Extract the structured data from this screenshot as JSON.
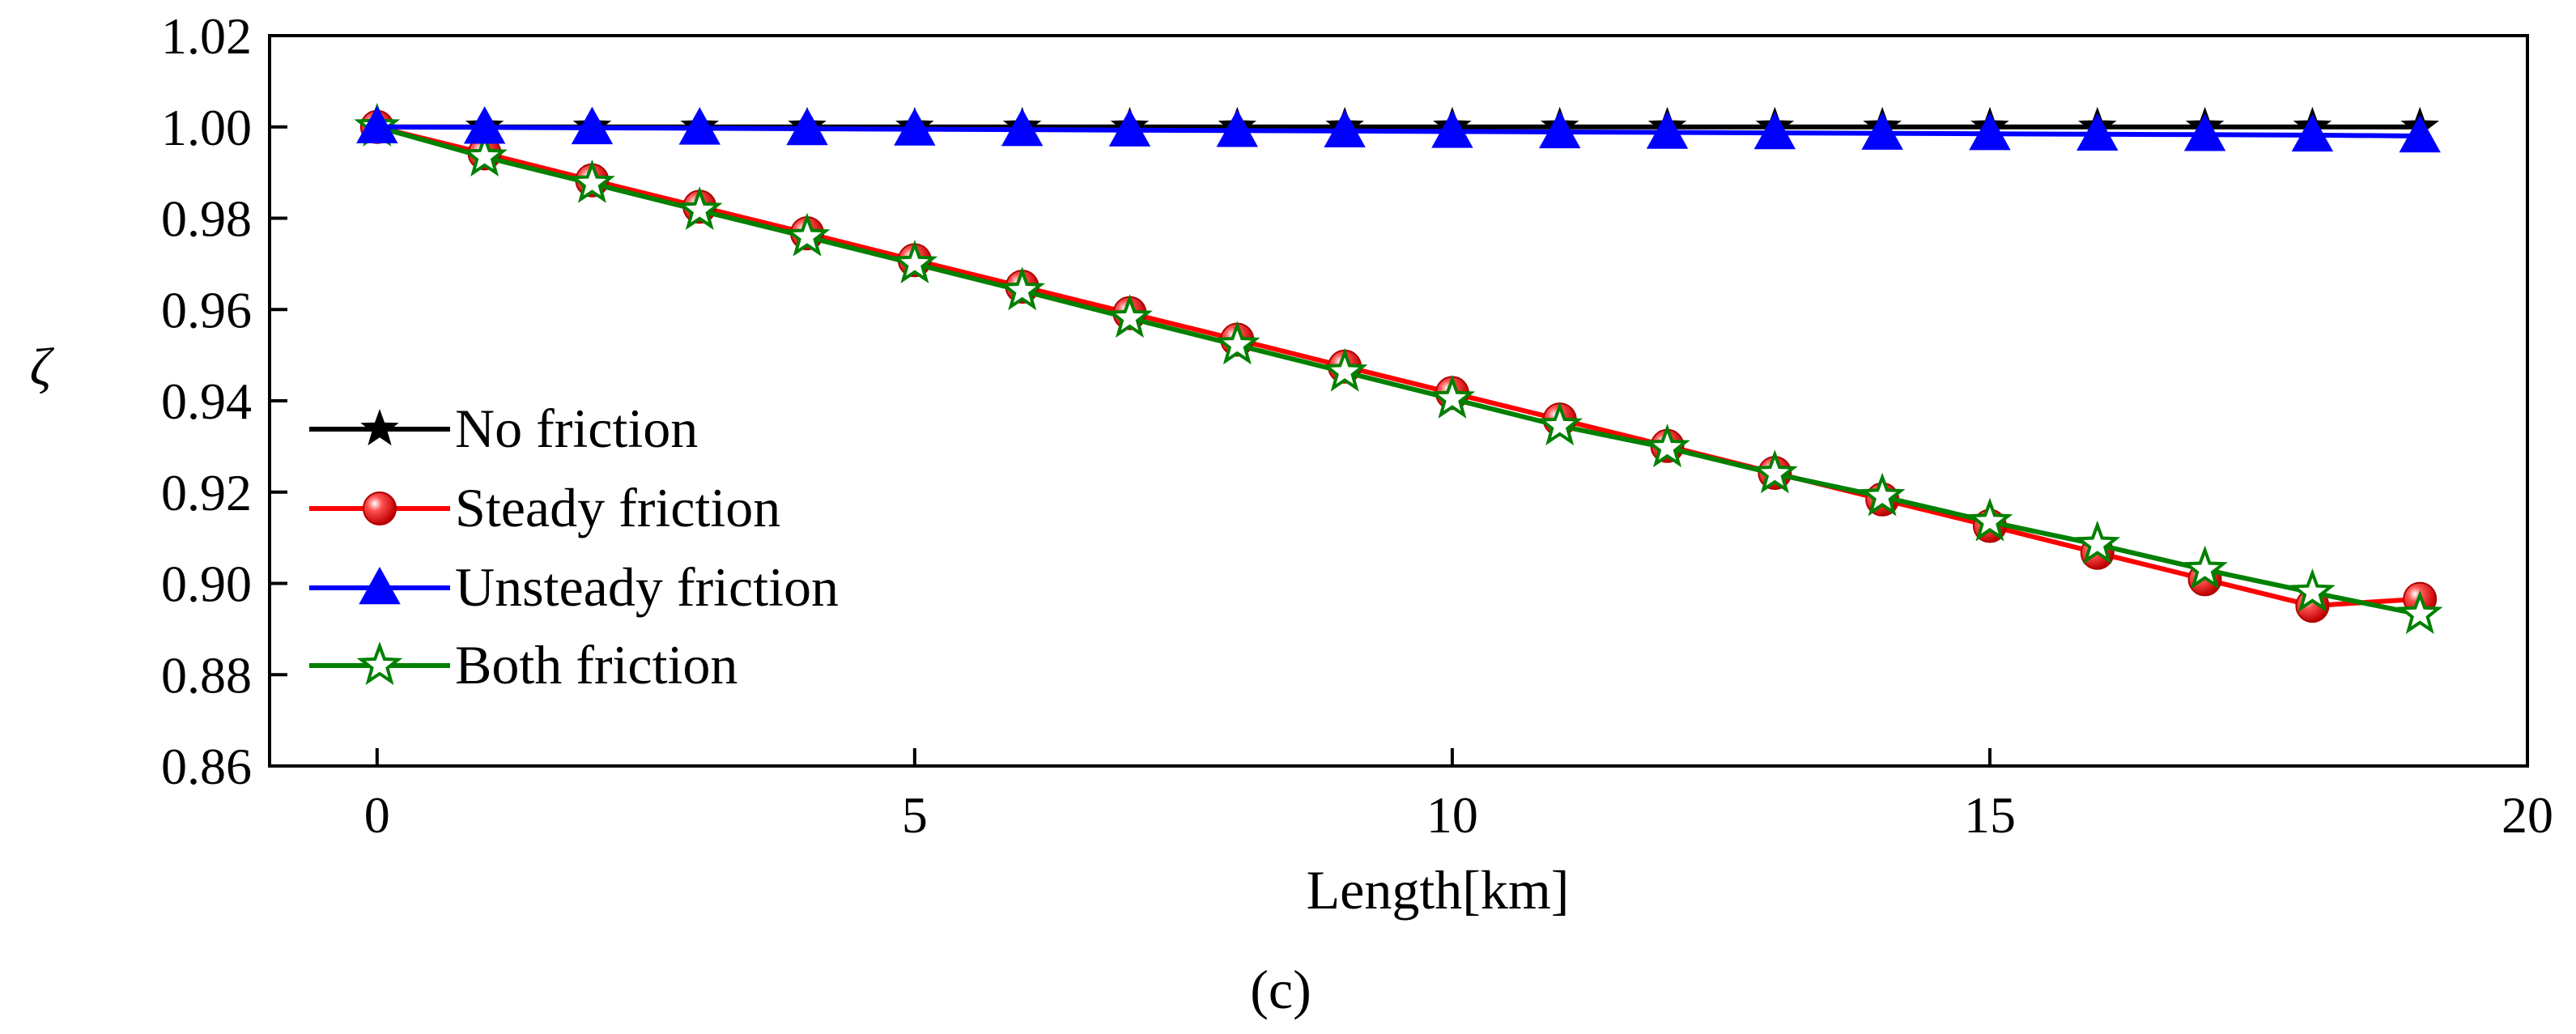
{
  "chart_data": {
    "type": "line",
    "title": "",
    "xlabel": "Length[km]",
    "ylabel": "ζ",
    "panel_label": "(c)",
    "xlim": [
      -1,
      20
    ],
    "ylim": [
      0.86,
      1.02
    ],
    "xticks": [
      0,
      5,
      10,
      15,
      20
    ],
    "xtick_labels": [
      "0",
      "5",
      "10",
      "15",
      "20"
    ],
    "yticks": [
      0.86,
      0.88,
      0.9,
      0.92,
      0.94,
      0.96,
      0.98,
      1.0,
      1.02
    ],
    "ytick_labels": [
      "0.86",
      "0.88",
      "0.90",
      "0.92",
      "0.94",
      "0.96",
      "0.98",
      "1.00",
      "1.02"
    ],
    "grid": false,
    "legend_position": "left",
    "x": [
      0,
      1,
      2,
      3,
      4,
      5,
      6,
      7,
      8,
      9,
      10,
      11,
      12,
      13,
      14,
      15,
      16,
      17,
      18,
      19
    ],
    "series": [
      {
        "name": "No friction",
        "color": "#000000",
        "marker": "filled-star",
        "values": [
          1.0,
          1.0,
          1.0,
          1.0,
          1.0,
          1.0,
          1.0,
          1.0,
          1.0,
          1.0,
          1.0,
          1.0,
          1.0,
          1.0,
          1.0,
          1.0,
          1.0,
          1.0,
          1.0,
          1.0
        ]
      },
      {
        "name": "Steady friction",
        "color": "#ff0000",
        "marker": "sphere",
        "values": [
          1.0,
          0.9942,
          0.9883,
          0.9825,
          0.9767,
          0.9708,
          0.965,
          0.9592,
          0.9534,
          0.9475,
          0.9417,
          0.9359,
          0.9301,
          0.9242,
          0.9184,
          0.9126,
          0.9067,
          0.9009,
          0.8951,
          0.8966
        ]
      },
      {
        "name": "Unsteady friction",
        "color": "#0000ff",
        "marker": "filled-triangle",
        "values": [
          1.0,
          0.9999,
          0.9998,
          0.9997,
          0.9996,
          0.9995,
          0.9994,
          0.9993,
          0.9992,
          0.9991,
          0.999,
          0.9989,
          0.9988,
          0.9987,
          0.9986,
          0.9985,
          0.9984,
          0.9983,
          0.9982,
          0.998
        ]
      },
      {
        "name": "Both friction",
        "color": "#008000",
        "marker": "hollow-star",
        "values": [
          1.0,
          0.9934,
          0.9876,
          0.9817,
          0.9759,
          0.97,
          0.9641,
          0.9581,
          0.9522,
          0.9463,
          0.9404,
          0.9345,
          0.9297,
          0.924,
          0.919,
          0.9135,
          0.9085,
          0.903,
          0.898,
          0.8932
        ]
      }
    ]
  }
}
